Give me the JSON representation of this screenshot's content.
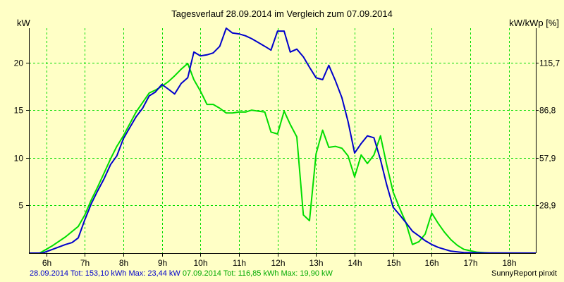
{
  "chart_data": {
    "type": "line",
    "title": "Tagesverlauf 28.09.2014 im Vergleich zum 07.09.2014",
    "ylabel_left": "kW",
    "ylabel_right": "kW/kWp [%]",
    "x_range": [
      5.55,
      18.7
    ],
    "ylim": [
      0,
      23.6
    ],
    "x_ticks": [
      {
        "x": 6,
        "label": "6h"
      },
      {
        "x": 7,
        "label": "7h"
      },
      {
        "x": 8,
        "label": "8h"
      },
      {
        "x": 9,
        "label": "9h"
      },
      {
        "x": 10,
        "label": "10h"
      },
      {
        "x": 11,
        "label": "11h"
      },
      {
        "x": 12,
        "label": "12h"
      },
      {
        "x": 13,
        "label": "13h"
      },
      {
        "x": 14,
        "label": "14h"
      },
      {
        "x": 15,
        "label": "15h"
      },
      {
        "x": 16,
        "label": "16h"
      },
      {
        "x": 17,
        "label": "17h"
      },
      {
        "x": 18,
        "label": "18h"
      }
    ],
    "y_ticks_left": [
      {
        "y": 5,
        "label": "5"
      },
      {
        "y": 10,
        "label": "10"
      },
      {
        "y": 15,
        "label": "15"
      },
      {
        "y": 20,
        "label": "20"
      }
    ],
    "y_ticks_right": [
      {
        "y": 5,
        "label": "28,9"
      },
      {
        "y": 10,
        "label": "57,9"
      },
      {
        "y": 15,
        "label": "86,8"
      },
      {
        "y": 20,
        "label": "115,7"
      }
    ],
    "grid": true,
    "series": [
      {
        "color": "#0000CC",
        "points": [
          [
            5.55,
            0
          ],
          [
            5.9,
            0
          ],
          [
            6.17,
            0.4
          ],
          [
            6.5,
            0.9
          ],
          [
            6.67,
            1.1
          ],
          [
            6.83,
            1.6
          ],
          [
            7.0,
            3.5
          ],
          [
            7.17,
            5.2
          ],
          [
            7.33,
            6.5
          ],
          [
            7.5,
            7.8
          ],
          [
            7.67,
            9.3
          ],
          [
            7.83,
            10.2
          ],
          [
            8.0,
            12.0
          ],
          [
            8.17,
            13.2
          ],
          [
            8.33,
            14.3
          ],
          [
            8.5,
            15.2
          ],
          [
            8.67,
            16.5
          ],
          [
            8.83,
            16.9
          ],
          [
            9.0,
            17.7
          ],
          [
            9.17,
            17.2
          ],
          [
            9.33,
            16.7
          ],
          [
            9.5,
            17.8
          ],
          [
            9.67,
            18.4
          ],
          [
            9.83,
            21.1
          ],
          [
            10.0,
            20.7
          ],
          [
            10.17,
            20.8
          ],
          [
            10.33,
            21.0
          ],
          [
            10.5,
            21.7
          ],
          [
            10.67,
            23.6
          ],
          [
            10.83,
            23.1
          ],
          [
            11.0,
            23.0
          ],
          [
            11.17,
            22.8
          ],
          [
            11.33,
            22.5
          ],
          [
            11.5,
            22.1
          ],
          [
            11.67,
            21.7
          ],
          [
            11.83,
            21.3
          ],
          [
            12.0,
            23.3
          ],
          [
            12.17,
            23.3
          ],
          [
            12.33,
            21.1
          ],
          [
            12.5,
            21.4
          ],
          [
            12.67,
            20.6
          ],
          [
            12.83,
            19.5
          ],
          [
            13.0,
            18.4
          ],
          [
            13.17,
            18.2
          ],
          [
            13.33,
            19.7
          ],
          [
            13.5,
            18.1
          ],
          [
            13.67,
            16.3
          ],
          [
            13.83,
            13.8
          ],
          [
            14.0,
            10.5
          ],
          [
            14.17,
            11.5
          ],
          [
            14.33,
            12.3
          ],
          [
            14.5,
            12.1
          ],
          [
            14.67,
            9.8
          ],
          [
            14.83,
            7.2
          ],
          [
            15.0,
            4.8
          ],
          [
            15.17,
            4.0
          ],
          [
            15.33,
            3.2
          ],
          [
            15.5,
            2.3
          ],
          [
            15.67,
            1.8
          ],
          [
            15.83,
            1.3
          ],
          [
            16.0,
            0.9
          ],
          [
            16.17,
            0.6
          ],
          [
            16.33,
            0.4
          ],
          [
            16.5,
            0.2
          ],
          [
            16.83,
            0.05
          ],
          [
            17.33,
            0.02
          ],
          [
            18.7,
            0
          ]
        ]
      },
      {
        "color": "#00DD00",
        "points": [
          [
            5.55,
            0
          ],
          [
            5.83,
            0
          ],
          [
            6.17,
            0.8
          ],
          [
            6.5,
            1.7
          ],
          [
            6.83,
            2.8
          ],
          [
            7.0,
            4.0
          ],
          [
            7.17,
            5.6
          ],
          [
            7.33,
            6.9
          ],
          [
            7.5,
            8.4
          ],
          [
            7.67,
            9.9
          ],
          [
            7.83,
            11.2
          ],
          [
            8.0,
            12.3
          ],
          [
            8.17,
            13.6
          ],
          [
            8.33,
            14.8
          ],
          [
            8.5,
            15.8
          ],
          [
            8.67,
            16.8
          ],
          [
            8.83,
            17.1
          ],
          [
            9.0,
            17.5
          ],
          [
            9.17,
            18.0
          ],
          [
            9.33,
            18.6
          ],
          [
            9.5,
            19.3
          ],
          [
            9.67,
            19.9
          ],
          [
            9.83,
            18.2
          ],
          [
            10.0,
            17.0
          ],
          [
            10.17,
            15.6
          ],
          [
            10.33,
            15.6
          ],
          [
            10.5,
            15.2
          ],
          [
            10.67,
            14.7
          ],
          [
            10.83,
            14.7
          ],
          [
            11.0,
            14.8
          ],
          [
            11.17,
            14.8
          ],
          [
            11.33,
            15.0
          ],
          [
            11.5,
            14.9
          ],
          [
            11.67,
            14.8
          ],
          [
            11.83,
            12.7
          ],
          [
            12.0,
            12.5
          ],
          [
            12.17,
            14.9
          ],
          [
            12.33,
            13.5
          ],
          [
            12.5,
            12.2
          ],
          [
            12.67,
            4.0
          ],
          [
            12.83,
            3.4
          ],
          [
            13.0,
            10.4
          ],
          [
            13.17,
            12.9
          ],
          [
            13.33,
            11.1
          ],
          [
            13.5,
            11.2
          ],
          [
            13.67,
            11.0
          ],
          [
            13.83,
            10.2
          ],
          [
            14.0,
            8.0
          ],
          [
            14.17,
            10.3
          ],
          [
            14.33,
            9.4
          ],
          [
            14.5,
            10.3
          ],
          [
            14.67,
            12.3
          ],
          [
            14.83,
            9.3
          ],
          [
            15.0,
            6.4
          ],
          [
            15.17,
            4.7
          ],
          [
            15.33,
            3.2
          ],
          [
            15.5,
            0.9
          ],
          [
            15.67,
            1.2
          ],
          [
            15.83,
            2.0
          ],
          [
            16.0,
            4.2
          ],
          [
            16.17,
            3.1
          ],
          [
            16.33,
            2.2
          ],
          [
            16.5,
            1.4
          ],
          [
            16.67,
            0.8
          ],
          [
            16.83,
            0.4
          ],
          [
            17.0,
            0.25
          ],
          [
            17.17,
            0.1
          ],
          [
            17.5,
            0
          ],
          [
            18.7,
            0
          ]
        ]
      }
    ],
    "footer": {
      "blue_text": "28.09.2014 Tot: 153,10 kWh Max: 23,44 kW",
      "green_text": "07.09.2014 Tot: 116,85 kWh Max: 19,90 kW",
      "brand": "SunnyReport pinxit"
    },
    "colors": {
      "background": "#FFFFC6",
      "grid": "#00DD00",
      "axis": "#000000"
    }
  }
}
